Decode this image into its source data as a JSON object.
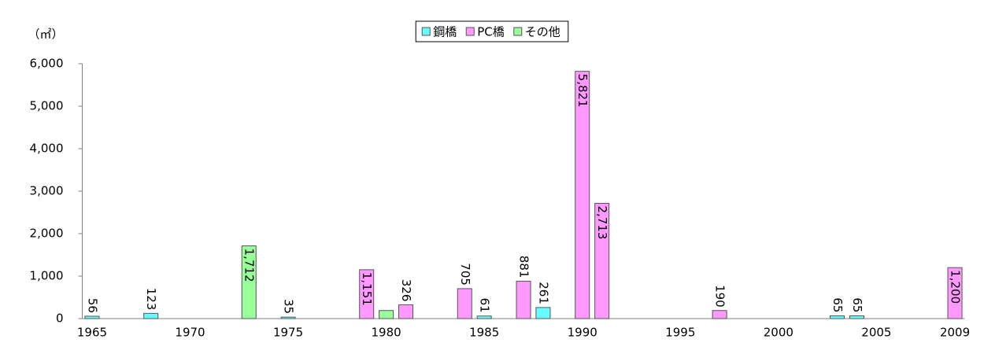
{
  "chart_data": {
    "type": "bar",
    "stacked": true,
    "y_label": "（㎡）",
    "categories": [
      "1965",
      null,
      null,
      null,
      null,
      "1970",
      null,
      null,
      null,
      null,
      "1975",
      null,
      null,
      null,
      null,
      "1980",
      null,
      null,
      null,
      null,
      "1985",
      null,
      null,
      null,
      null,
      "1990",
      null,
      null,
      null,
      null,
      "1995",
      null,
      null,
      null,
      null,
      "2000",
      null,
      null,
      null,
      null,
      "2005",
      null,
      null,
      null,
      "2009"
    ],
    "series": [
      {
        "name": "鋼橋",
        "color": "#66ffff",
        "values": [
          56,
          null,
          null,
          123,
          null,
          null,
          null,
          null,
          null,
          null,
          35,
          null,
          null,
          null,
          null,
          null,
          null,
          null,
          null,
          null,
          61,
          null,
          null,
          261,
          null,
          null,
          null,
          null,
          null,
          null,
          null,
          null,
          null,
          null,
          null,
          null,
          null,
          null,
          65,
          65,
          null,
          null,
          null,
          null,
          null
        ],
        "value_labels": [
          "56",
          null,
          null,
          "123",
          null,
          null,
          null,
          null,
          null,
          null,
          "35",
          null,
          null,
          null,
          null,
          null,
          null,
          null,
          null,
          null,
          "61",
          null,
          null,
          "261",
          null,
          null,
          null,
          null,
          null,
          null,
          null,
          null,
          null,
          null,
          null,
          null,
          null,
          null,
          "65",
          "65",
          null,
          null,
          null,
          null,
          null
        ]
      },
      {
        "name": "PC橋",
        "color": "#ff99ff",
        "values": [
          null,
          null,
          null,
          null,
          null,
          null,
          null,
          null,
          null,
          null,
          null,
          null,
          null,
          null,
          1151,
          null,
          326,
          null,
          null,
          705,
          null,
          null,
          881,
          null,
          null,
          5821,
          2713,
          null,
          null,
          null,
          null,
          null,
          190,
          null,
          null,
          null,
          null,
          null,
          null,
          null,
          null,
          null,
          null,
          null,
          1200
        ],
        "value_labels": [
          null,
          null,
          null,
          null,
          null,
          null,
          null,
          null,
          null,
          null,
          null,
          null,
          null,
          null,
          "1,151",
          null,
          "326",
          null,
          null,
          "705",
          null,
          null,
          "881",
          null,
          null,
          "5,821",
          "2,713",
          null,
          null,
          null,
          null,
          null,
          "190",
          null,
          null,
          null,
          null,
          null,
          null,
          null,
          null,
          null,
          null,
          null,
          "1,200"
        ]
      },
      {
        "name": "その他",
        "color": "#99ff99",
        "values": [
          null,
          null,
          null,
          null,
          null,
          null,
          null,
          null,
          1712,
          null,
          null,
          null,
          null,
          null,
          null,
          190,
          null,
          null,
          null,
          null,
          null,
          null,
          null,
          null,
          null,
          null,
          null,
          null,
          null,
          null,
          null,
          null,
          null,
          null,
          null,
          null,
          null,
          null,
          null,
          null,
          null,
          null,
          null,
          null,
          null
        ],
        "value_labels": [
          null,
          null,
          null,
          null,
          null,
          null,
          null,
          null,
          "1,712",
          null,
          null,
          null,
          null,
          null,
          null,
          null,
          null,
          null,
          null,
          null,
          null,
          null,
          null,
          null,
          null,
          null,
          null,
          null,
          null,
          null,
          null,
          null,
          null,
          null,
          null,
          null,
          null,
          null,
          null,
          null,
          null,
          null,
          null,
          null,
          null
        ]
      }
    ],
    "ylim": [
      0,
      6000
    ],
    "yticks": [
      0,
      {
        "value": 1000,
        "label": "1,000"
      },
      {
        "value": 2000,
        "label": "2,000"
      },
      {
        "value": 3000,
        "label": "3,000"
      },
      {
        "value": 4000,
        "label": "4,000"
      },
      {
        "value": 5000,
        "label": "5,000"
      },
      {
        "value": 6000,
        "label": "6,000"
      }
    ],
    "legend": "top",
    "grid": false
  }
}
